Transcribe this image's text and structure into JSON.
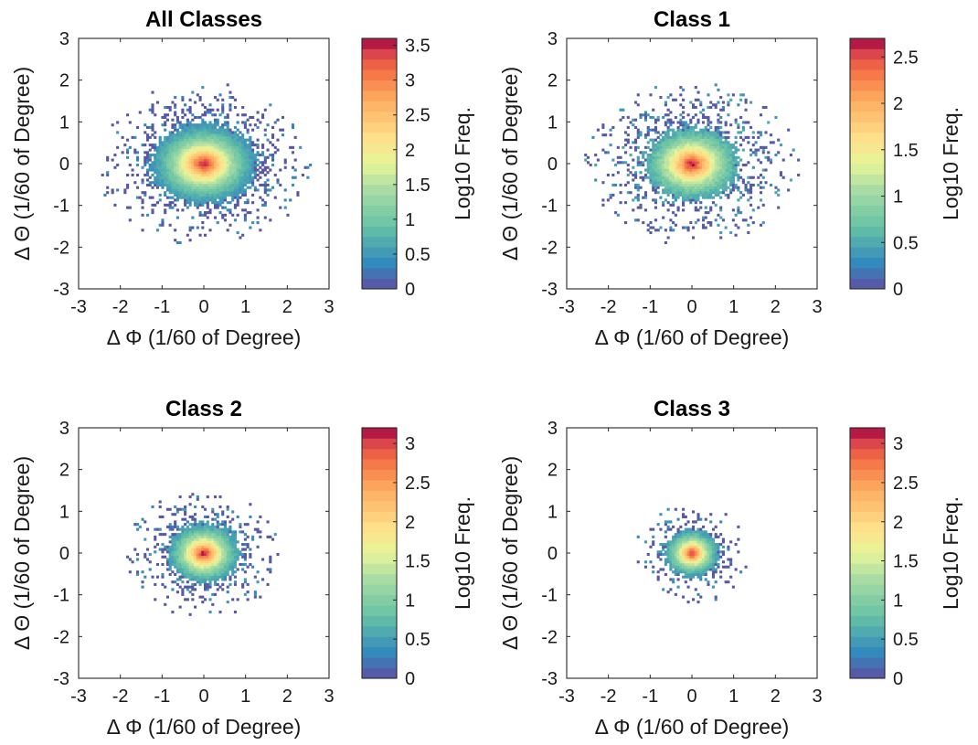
{
  "chart_data": [
    {
      "type": "heatmap",
      "title": "All Classes",
      "xlabel": "Δ Φ (1/60 of Degree)",
      "ylabel": "Δ Θ (1/60 of Degree)",
      "xlim": [
        -3,
        3
      ],
      "ylim": [
        -3,
        3
      ],
      "xticks": [
        "-3",
        "-2",
        "-1",
        "0",
        "1",
        "2",
        "3"
      ],
      "yticks": [
        "-3",
        "-2",
        "-1",
        "0",
        "1",
        "2",
        "3"
      ],
      "colorbar": {
        "label": "Log10 Freq.",
        "range": [
          0,
          3.6
        ],
        "ticks": [
          "0",
          "0.5",
          "1",
          "1.5",
          "2",
          "2.5",
          "3",
          "3.5"
        ],
        "colormap": "spectral"
      },
      "distribution": {
        "center": [
          0,
          0
        ],
        "peak_log10": 3.6,
        "sigma_x": 0.55,
        "sigma_y": 0.42,
        "extent_x": [
          -2.6,
          2.9
        ],
        "extent_y": [
          -2.4,
          2.4
        ]
      },
      "grid": false
    },
    {
      "type": "heatmap",
      "title": "Class 1",
      "xlabel": "Δ Φ (1/60 of Degree)",
      "ylabel": "Δ Θ (1/60 of Degree)",
      "xlim": [
        -3,
        3
      ],
      "ylim": [
        -3,
        3
      ],
      "xticks": [
        "-3",
        "-2",
        "-1",
        "0",
        "1",
        "2",
        "3"
      ],
      "yticks": [
        "-3",
        "-2",
        "-1",
        "0",
        "1",
        "2",
        "3"
      ],
      "colorbar": {
        "label": "Log10 Freq.",
        "range": [
          0,
          2.7
        ],
        "ticks": [
          "0",
          "0.5",
          "1",
          "1.5",
          "2",
          "2.5"
        ],
        "colormap": "spectral"
      },
      "distribution": {
        "center": [
          0,
          0
        ],
        "peak_log10": 2.7,
        "sigma_x": 0.55,
        "sigma_y": 0.42,
        "extent_x": [
          -2.6,
          2.8
        ],
        "extent_y": [
          -2.3,
          2.4
        ]
      },
      "grid": false
    },
    {
      "type": "heatmap",
      "title": "Class 2",
      "xlabel": "Δ Φ (1/60 of Degree)",
      "ylabel": "Δ Θ (1/60 of Degree)",
      "xlim": [
        -3,
        3
      ],
      "ylim": [
        -3,
        3
      ],
      "xticks": [
        "-3",
        "-2",
        "-1",
        "0",
        "1",
        "2",
        "3"
      ],
      "yticks": [
        "-3",
        "-2",
        "-1",
        "0",
        "1",
        "2",
        "3"
      ],
      "colorbar": {
        "label": "Log10 Freq.",
        "range": [
          0,
          3.2
        ],
        "ticks": [
          "0",
          "0.5",
          "1",
          "1.5",
          "2",
          "2.5",
          "3"
        ],
        "colormap": "spectral"
      },
      "distribution": {
        "center": [
          0,
          0
        ],
        "peak_log10": 3.2,
        "sigma_x": 0.4,
        "sigma_y": 0.33,
        "extent_x": [
          -2.1,
          2.4
        ],
        "extent_y": [
          -1.7,
          2.1
        ]
      },
      "grid": false
    },
    {
      "type": "heatmap",
      "title": "Class 3",
      "xlabel": "Δ Φ (1/60 of Degree)",
      "ylabel": "Δ Θ (1/60 of Degree)",
      "xlim": [
        -3,
        3
      ],
      "ylim": [
        -3,
        3
      ],
      "xticks": [
        "-3",
        "-2",
        "-1",
        "0",
        "1",
        "2",
        "3"
      ],
      "yticks": [
        "-3",
        "-2",
        "-1",
        "0",
        "1",
        "2",
        "3"
      ],
      "colorbar": {
        "label": "Log10 Freq.",
        "range": [
          0,
          3.2
        ],
        "ticks": [
          "0",
          "0.5",
          "1",
          "1.5",
          "2",
          "2.5",
          "3"
        ],
        "colormap": "spectral"
      },
      "distribution": {
        "center": [
          0,
          0
        ],
        "peak_log10": 3.2,
        "sigma_x": 0.3,
        "sigma_y": 0.26,
        "extent_x": [
          -1.6,
          1.5
        ],
        "extent_y": [
          -1.2,
          1.4
        ]
      },
      "grid": false
    }
  ]
}
